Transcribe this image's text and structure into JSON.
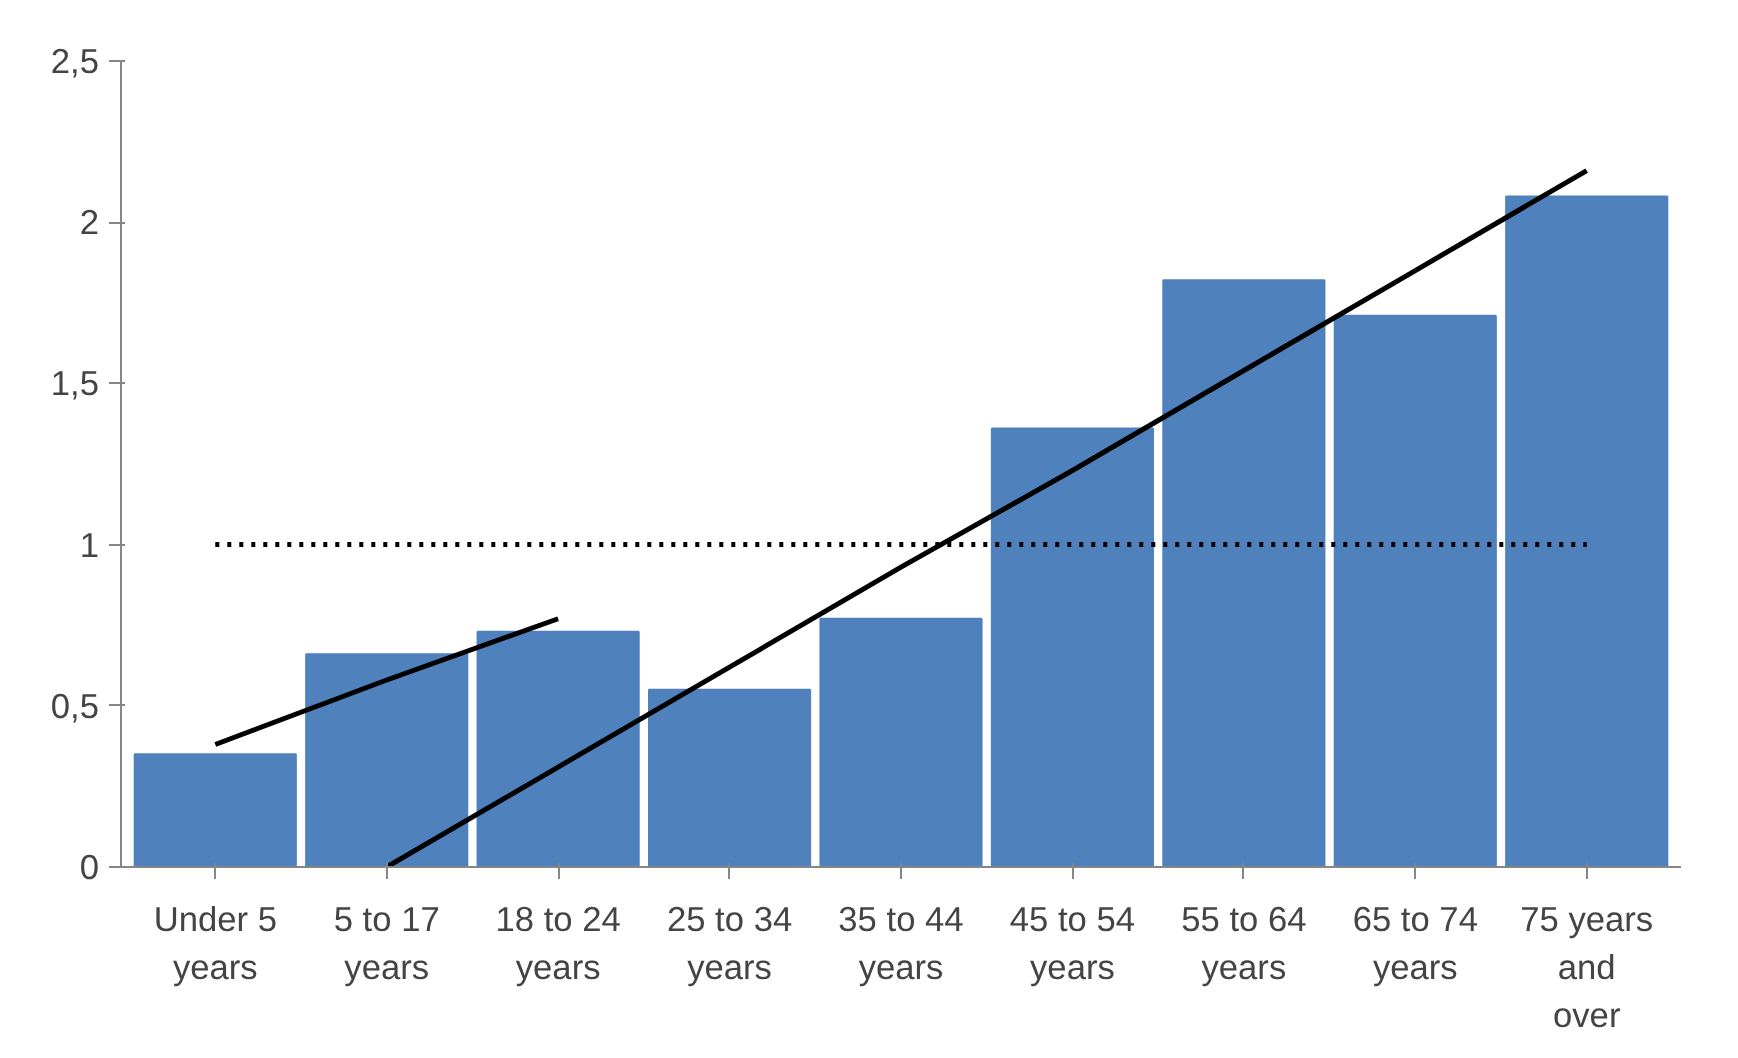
{
  "chart_data": {
    "type": "bar",
    "categories": [
      "Under 5\nyears",
      "5 to 17\nyears",
      "18 to 24\nyears",
      "25 to 34\nyears",
      "35 to 44\nyears",
      "45 to 54\nyears",
      "55 to 64\nyears",
      "65 to 74\nyears",
      "75 years\nand\nover"
    ],
    "series": [
      {
        "color": "#4f81bd",
        "values": [
          0.35,
          0.66,
          0.73,
          0.55,
          0.77,
          1.36,
          1.82,
          1.71,
          2.08
        ]
      },
      {
        "type": "line",
        "color": "#000000",
        "values": [
          0.38,
          0.58,
          0.77,
          null,
          null,
          null,
          null,
          null,
          null
        ],
        "line_style": "solid"
      },
      {
        "type": "line",
        "color": "#000000",
        "values": [
          null,
          0,
          0.31,
          0.62,
          0.93,
          1.23,
          1.54,
          1.85,
          2.16
        ],
        "line_style": "solid"
      },
      {
        "type": "line",
        "color": "#000000",
        "values": [
          1,
          1,
          1,
          1,
          1,
          1,
          1,
          1,
          1
        ],
        "line_style": "dotted"
      }
    ],
    "ylim": [
      0,
      2.5
    ],
    "yticks": [
      0,
      {
        "value": 0.5,
        "label": "0,5"
      },
      1,
      {
        "value": 1.5,
        "label": "1,5"
      },
      2,
      {
        "value": 2.5,
        "label": "2,5"
      }
    ],
    "grid": false
  }
}
